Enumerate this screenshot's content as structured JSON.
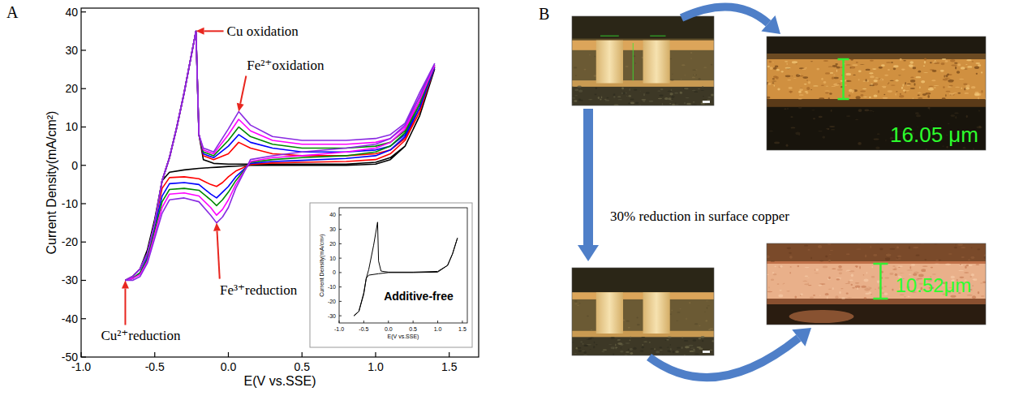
{
  "panel_labels": [
    "A",
    "B"
  ],
  "chart_data": [
    {
      "type": "line",
      "x_label": "E(V vs.SSE)",
      "y_label": "Current Density(mA/cm²)",
      "x": [
        -0.7,
        -0.65,
        -0.6,
        -0.55,
        -0.5,
        -0.45,
        -0.4,
        -0.35,
        -0.3,
        -0.25,
        -0.22,
        -0.2,
        -0.17,
        -0.1,
        0.0,
        0.07,
        0.15,
        0.3,
        0.5,
        0.8,
        1.0,
        1.1,
        1.2,
        1.3,
        1.4,
        1.3,
        1.2,
        1.1,
        1.0,
        0.8,
        0.5,
        0.3,
        0.15,
        0.05,
        0.0,
        -0.04,
        -0.08,
        -0.12,
        -0.2,
        -0.3,
        -0.4,
        -0.45,
        -0.5,
        -0.55,
        -0.6,
        -0.65,
        -0.7
      ],
      "series": [
        {
          "color": "#000000",
          "values": [
            -30,
            -29,
            -27,
            -23,
            -15,
            -4,
            2,
            10,
            19,
            29,
            35,
            8,
            1.5,
            0.5,
            0.3,
            0.3,
            0.3,
            0.3,
            0.3,
            0.3,
            0.8,
            2,
            5,
            13,
            25,
            13,
            5,
            1.5,
            0.3,
            0,
            0,
            0,
            0,
            -0.2,
            -0.3,
            -0.4,
            -0.5,
            -0.6,
            -0.8,
            -1.2,
            -1.8,
            -4,
            -14,
            -22,
            -27,
            -29,
            -30
          ]
        },
        {
          "color": "#ff0000",
          "values": [
            -30,
            -29,
            -27,
            -23,
            -15,
            -4,
            2,
            10,
            19,
            29,
            35,
            8,
            2.5,
            1.5,
            3,
            6,
            4.5,
            3,
            2.5,
            2.5,
            3,
            4,
            7,
            15,
            25.5,
            14,
            6.5,
            3,
            1.5,
            1,
            0.8,
            0.6,
            0.2,
            -1.5,
            -3,
            -4.5,
            -5.5,
            -5,
            -3.5,
            -3,
            -3.2,
            -6,
            -15,
            -23,
            -27,
            -29,
            -30
          ]
        },
        {
          "color": "#0000ff",
          "values": [
            -30,
            -29,
            -27,
            -23,
            -15,
            -4,
            2,
            10,
            19,
            29,
            35,
            8,
            3,
            2,
            5,
            8,
            6,
            4.5,
            3.5,
            3.5,
            4,
            5,
            8,
            16,
            25.5,
            15,
            7.5,
            4,
            2.5,
            1.8,
            1.3,
            1,
            0.5,
            -3,
            -5.5,
            -7,
            -8.5,
            -7.5,
            -5,
            -4.5,
            -4.8,
            -8,
            -16,
            -24,
            -28,
            -29.5,
            -30
          ]
        },
        {
          "color": "#008800",
          "values": [
            -30,
            -29,
            -27,
            -23,
            -15,
            -4,
            2,
            10,
            19,
            29,
            35,
            8,
            3.5,
            2.5,
            6.5,
            10,
            7.5,
            5.5,
            4.5,
            4.5,
            5,
            6,
            9,
            17,
            26,
            16,
            8.5,
            5,
            3.5,
            2.5,
            2,
            1.5,
            0.8,
            -4,
            -7,
            -9,
            -10.5,
            -9,
            -6.5,
            -6,
            -6.3,
            -9.5,
            -17,
            -24.5,
            -28,
            -29.5,
            -30
          ]
        },
        {
          "color": "#ff00ff",
          "values": [
            -30,
            -29,
            -27,
            -23,
            -15,
            -4,
            2,
            10,
            19,
            29,
            35,
            8,
            4,
            3,
            8,
            12,
            9,
            6.5,
            5.5,
            5.5,
            6,
            7,
            10,
            18,
            26,
            17,
            9.5,
            6,
            4.5,
            3.5,
            2.5,
            2,
            1,
            -5,
            -9,
            -11.5,
            -13,
            -11,
            -8,
            -7.2,
            -7.5,
            -11,
            -18,
            -25,
            -28.5,
            -29.5,
            -30
          ]
        },
        {
          "color": "#8a2be2",
          "values": [
            -30,
            -29,
            -27,
            -23,
            -15,
            -4,
            2,
            10,
            19,
            29,
            35,
            8,
            4.5,
            3.5,
            9.5,
            14,
            10.5,
            7.5,
            6.5,
            6.5,
            7,
            8,
            11,
            19,
            26.5,
            18,
            10.5,
            7,
            5.5,
            4.5,
            3.5,
            2.5,
            1.5,
            -6,
            -11,
            -13.5,
            -15,
            -13,
            -9.5,
            -8.5,
            -9,
            -12.5,
            -19,
            -25.5,
            -29,
            -30,
            -30
          ]
        }
      ],
      "xlim": [
        -1.0,
        1.7
      ],
      "ylim": [
        -50,
        41
      ],
      "xticks": [
        {
          "value": -1,
          "label": "-1.0"
        },
        -0.5,
        {
          "value": 0,
          "label": "0.0"
        },
        0.5,
        {
          "value": 1,
          "label": "1.0"
        },
        1.5
      ],
      "yticks": [
        -50,
        -40,
        -30,
        -20,
        -10,
        0,
        10,
        20,
        30,
        40
      ],
      "grid": false,
      "annotations": [
        {
          "text": "Cu oxidation",
          "x": -0.22,
          "y": 35
        },
        {
          "text": "Fe²⁺oxidation",
          "x": 0.07,
          "y": 14
        },
        {
          "text": "Fe³⁺reduction",
          "x": -0.08,
          "y": -15
        },
        {
          "text": "Cu²⁺reduction",
          "x": -0.7,
          "y": -30
        }
      ]
    },
    {
      "type": "line",
      "title": "Additive-free",
      "x_label": "E(V vs.SSE)",
      "y_label": "Current Density(mA/cm²)",
      "x": [
        -0.7,
        -0.6,
        -0.5,
        -0.45,
        -0.4,
        -0.3,
        -0.22,
        -0.2,
        -0.15,
        0.0,
        0.5,
        1.0,
        1.2,
        1.3,
        1.4,
        1.3,
        1.2,
        1.0,
        0.5,
        0.0,
        -0.2,
        -0.4,
        -0.45,
        -0.5,
        -0.6,
        -0.7
      ],
      "series": [
        {
          "color": "#000000",
          "values": [
            -30,
            -27,
            -15,
            -4,
            2,
            19,
            35,
            8,
            1,
            0.3,
            0.3,
            0.8,
            5,
            13,
            24,
            13,
            5,
            0.3,
            0,
            0,
            -0.8,
            -1.8,
            -4,
            -14,
            -27,
            -30
          ]
        }
      ],
      "xlim": [
        -1.0,
        1.6
      ],
      "ylim": [
        -35,
        45
      ],
      "xticks": [
        {
          "value": -1,
          "label": "-1.0"
        },
        -0.5,
        {
          "value": 0,
          "label": "0.0"
        },
        0.5,
        {
          "value": 1,
          "label": "1.0"
        },
        1.5
      ],
      "yticks": [
        -30,
        -20,
        -10,
        0,
        10,
        20,
        30,
        40
      ],
      "grid": false
    }
  ],
  "figure_b": {
    "caption": "30% reduction in surface copper",
    "before_thickness": "16.05 μm",
    "after_thickness": "10.52μm"
  }
}
